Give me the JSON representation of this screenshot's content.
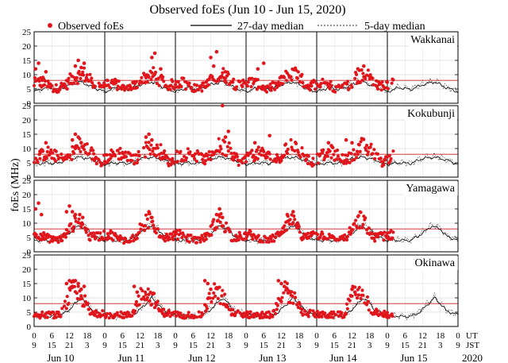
{
  "chart_data": {
    "type": "scatter",
    "title": "Observed foEs (Jun 10 - Jun 15, 2020)",
    "ylabel": "foEs (MHz)",
    "ylim": [
      0,
      25
    ],
    "y_ticks": [
      "0",
      "5",
      "10",
      "15",
      "20",
      "25"
    ],
    "x_range_hours_ut": [
      0,
      144
    ],
    "reference_level_mhz": 8,
    "legend": {
      "observed": "Observed foEs",
      "median27": "27-day median",
      "median5": "5-day median"
    },
    "colors": {
      "observed": "#e0161c",
      "median27": "#000000",
      "median5": "#333333",
      "reference": "#cc1e1e",
      "grid": "#c8c8c8"
    },
    "axis_labels": {
      "ut": "UT",
      "jst": "JST"
    },
    "ut_tick_labels": [
      "0",
      "6",
      "12",
      "18",
      "0",
      "6",
      "12",
      "18",
      "0",
      "6",
      "12",
      "18",
      "0",
      "6",
      "12",
      "18",
      "0",
      "6",
      "12",
      "18",
      "0",
      "6",
      "12",
      "18",
      "0"
    ],
    "jst_tick_labels": [
      "9",
      "15",
      "21",
      "3",
      "9",
      "15",
      "21",
      "3",
      "9",
      "15",
      "21",
      "3",
      "9",
      "15",
      "21",
      "3",
      "9",
      "15",
      "21",
      "3",
      "9",
      "15",
      "21",
      "3",
      "9"
    ],
    "days": [
      "Jun 10",
      "Jun 11",
      "Jun 12",
      "Jun 13",
      "Jun 14",
      "Jun 15"
    ],
    "year": "2020",
    "observation_end_hour": 122,
    "stations": [
      {
        "name": "Wakkanai",
        "daily_hours": [
          2,
          7,
          11,
          13,
          17,
          21
        ],
        "daily_values": [
          7.5,
          5,
          6.5,
          9,
          10,
          6
        ],
        "median_hours": [
          0,
          4,
          8,
          12,
          16,
          20,
          24
        ],
        "median_values": [
          4,
          5.5,
          4.8,
          6.5,
          7.5,
          5.5,
          4
        ],
        "observed": [
          {
            "h": 0.5,
            "v": 12
          },
          {
            "h": 1.5,
            "v": 14
          },
          {
            "h": 3,
            "v": 9
          },
          {
            "h": 4,
            "v": 11
          },
          {
            "h": 14,
            "v": 13
          },
          {
            "h": 15,
            "v": 15
          },
          {
            "h": 16,
            "v": 12.5
          },
          {
            "h": 17,
            "v": 14
          },
          {
            "h": 40,
            "v": 16
          },
          {
            "h": 41,
            "v": 17.5
          },
          {
            "h": 43,
            "v": 12
          },
          {
            "h": 60,
            "v": 16
          },
          {
            "h": 61,
            "v": 13
          },
          {
            "h": 62,
            "v": 18
          },
          {
            "h": 65,
            "v": 11
          },
          {
            "h": 76,
            "v": 12
          },
          {
            "h": 78,
            "v": 14
          },
          {
            "h": 110,
            "v": 12
          },
          {
            "h": 112,
            "v": 13
          }
        ]
      },
      {
        "name": "Kokubunji",
        "daily_hours": [
          2,
          5,
          10,
          12,
          15,
          19,
          22
        ],
        "daily_values": [
          7.5,
          8.5,
          6,
          7.5,
          11,
          9,
          5
        ],
        "median_hours": [
          0,
          4,
          8,
          12,
          16,
          20,
          24
        ],
        "median_values": [
          4.5,
          5,
          4.8,
          6.5,
          7,
          6,
          4.5
        ],
        "observed": [
          {
            "h": 2,
            "v": 9
          },
          {
            "h": 4,
            "v": 12
          },
          {
            "h": 13,
            "v": 13
          },
          {
            "h": 14,
            "v": 15
          },
          {
            "h": 15,
            "v": 14
          },
          {
            "h": 16,
            "v": 12
          },
          {
            "h": 38,
            "v": 14
          },
          {
            "h": 39,
            "v": 15
          },
          {
            "h": 40,
            "v": 13
          },
          {
            "h": 48.5,
            "v": 9
          },
          {
            "h": 64,
            "v": 25
          },
          {
            "h": 65,
            "v": 14
          },
          {
            "h": 66,
            "v": 16
          },
          {
            "h": 75,
            "v": 12
          },
          {
            "h": 80,
            "v": 14.5
          },
          {
            "h": 100,
            "v": 12
          },
          {
            "h": 101,
            "v": 11
          },
          {
            "h": 106,
            "v": 13
          },
          {
            "h": 108,
            "v": 12
          }
        ]
      },
      {
        "name": "Yamagawa",
        "daily_hours": [
          2,
          4,
          7,
          10,
          13,
          15,
          17,
          19
        ],
        "daily_values": [
          6,
          5,
          4,
          5,
          9,
          11.5,
          9,
          5
        ],
        "median_hours": [
          0,
          4,
          8,
          12,
          15,
          18,
          20,
          24
        ],
        "median_values": [
          4,
          4,
          4,
          6.5,
          9,
          8,
          5.5,
          4
        ],
        "observed": [
          {
            "h": 0.5,
            "v": 15
          },
          {
            "h": 1.5,
            "v": 17
          },
          {
            "h": 2.5,
            "v": 13
          },
          {
            "h": 11,
            "v": 14
          },
          {
            "h": 12,
            "v": 16
          },
          {
            "h": 13,
            "v": 14
          },
          {
            "h": 14,
            "v": 13
          },
          {
            "h": 15.5,
            "v": 13
          },
          {
            "h": 16.5,
            "v": 12
          },
          {
            "h": 39,
            "v": 14
          },
          {
            "h": 40,
            "v": 12
          },
          {
            "h": 62,
            "v": 13
          },
          {
            "h": 63,
            "v": 15
          },
          {
            "h": 64,
            "v": 12
          },
          {
            "h": 86,
            "v": 13
          },
          {
            "h": 88,
            "v": 14
          }
        ]
      },
      {
        "name": "Okinawa",
        "daily_hours": [
          2,
          5,
          9,
          11,
          13,
          15,
          17,
          19
        ],
        "daily_values": [
          4,
          4,
          4,
          8,
          13,
          11,
          9,
          5
        ],
        "median_hours": [
          0,
          4,
          8,
          11,
          14,
          16,
          18,
          20,
          24
        ],
        "median_values": [
          4,
          3.5,
          3.5,
          5,
          8,
          10,
          8,
          5.5,
          4
        ],
        "observed": [
          {
            "h": 11,
            "v": 15
          },
          {
            "h": 12,
            "v": 16
          },
          {
            "h": 13,
            "v": 14
          },
          {
            "h": 14,
            "v": 16
          },
          {
            "h": 15,
            "v": 15
          },
          {
            "h": 16,
            "v": 13
          },
          {
            "h": 17,
            "v": 14
          },
          {
            "h": 34,
            "v": 14
          },
          {
            "h": 35,
            "v": 12
          },
          {
            "h": 58,
            "v": 16
          },
          {
            "h": 59,
            "v": 15
          },
          {
            "h": 60,
            "v": 13
          },
          {
            "h": 83,
            "v": 16
          },
          {
            "h": 84,
            "v": 15
          },
          {
            "h": 85,
            "v": 14
          },
          {
            "h": 86,
            "v": 13
          },
          {
            "h": 87,
            "v": 12
          },
          {
            "h": 108,
            "v": 13
          },
          {
            "h": 109,
            "v": 12
          }
        ]
      }
    ]
  }
}
